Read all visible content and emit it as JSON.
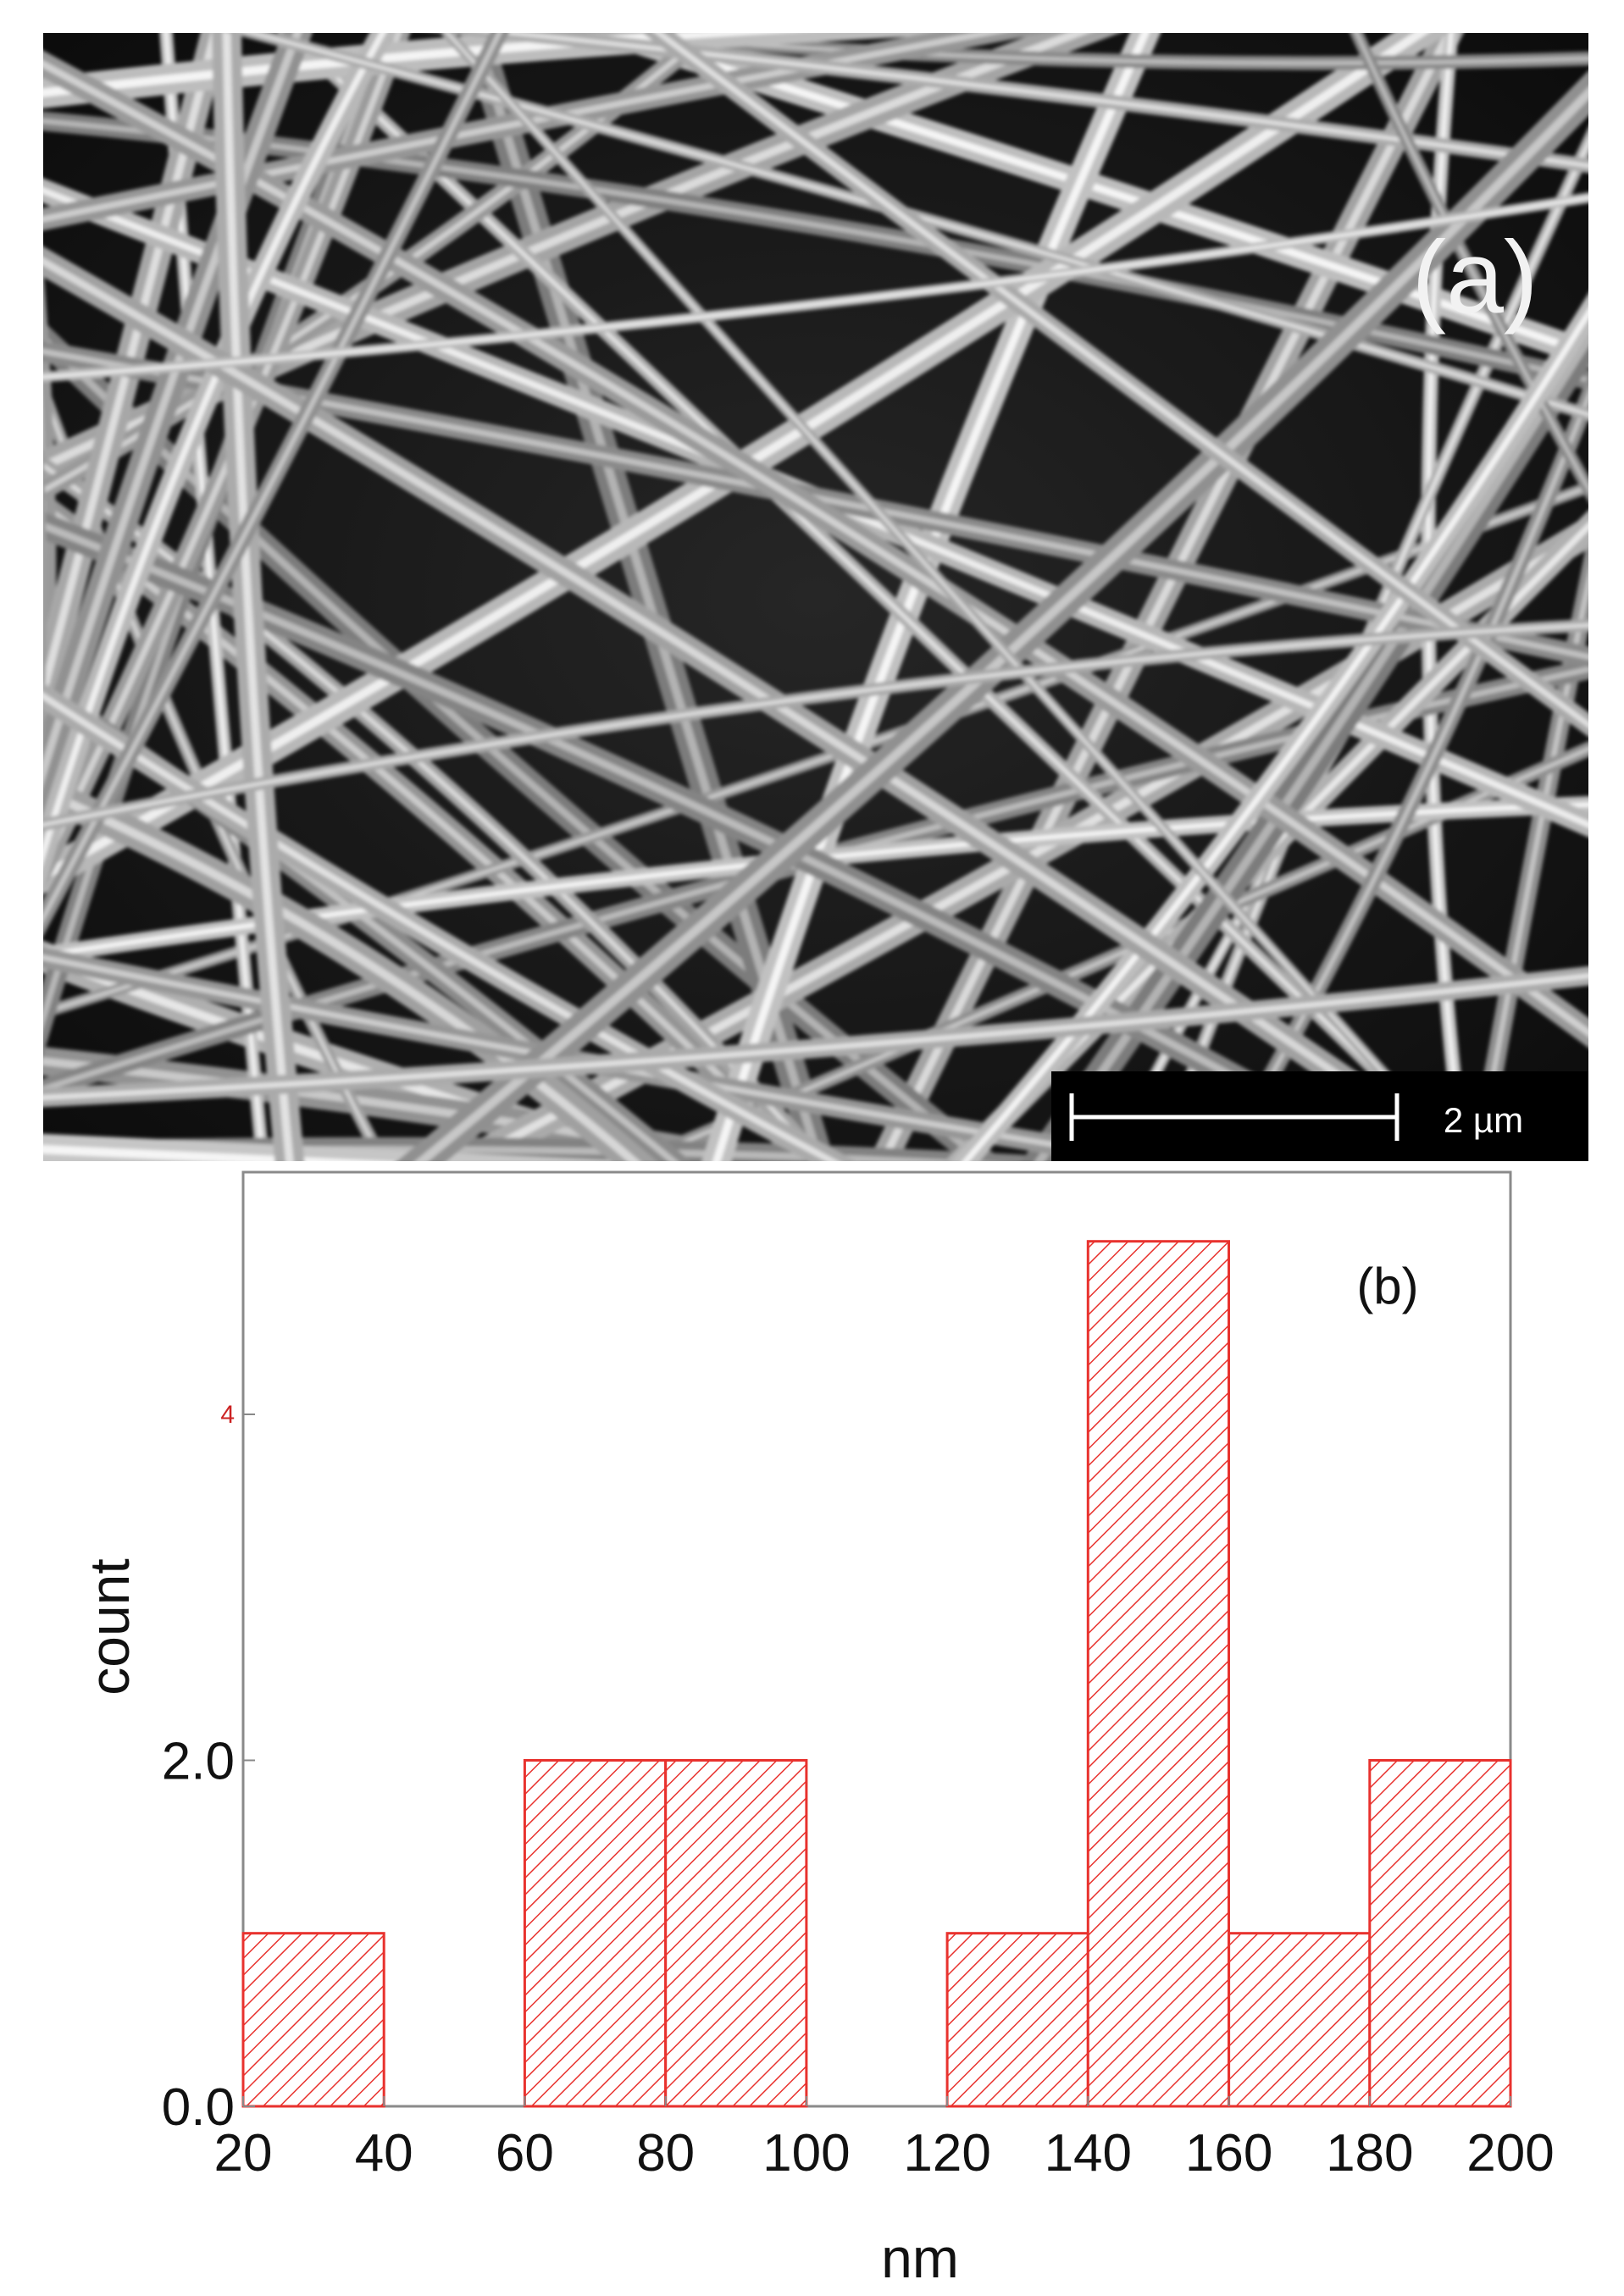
{
  "panel_a": {
    "label": "(a)",
    "scale_bar": "2 µm"
  },
  "chart_data": {
    "type": "bar",
    "panel_label": "(b)",
    "xlabel": "nm",
    "ylabel": "count",
    "bins": [
      {
        "from": 20,
        "to": 40,
        "count": 1
      },
      {
        "from": 40,
        "to": 60,
        "count": 0
      },
      {
        "from": 60,
        "to": 80,
        "count": 2
      },
      {
        "from": 80,
        "to": 100,
        "count": 2
      },
      {
        "from": 100,
        "to": 120,
        "count": 0
      },
      {
        "from": 120,
        "to": 140,
        "count": 1
      },
      {
        "from": 140,
        "to": 160,
        "count": 5
      },
      {
        "from": 160,
        "to": 180,
        "count": 1
      },
      {
        "from": 180,
        "to": 200,
        "count": 2
      }
    ],
    "x_ticks": [
      "20",
      "40",
      "60",
      "80",
      "100",
      "120",
      "140",
      "160",
      "180",
      "200"
    ],
    "y_ticks": [
      {
        "value": 0,
        "label": "0.0"
      },
      {
        "value": 2,
        "label": "2.0"
      },
      {
        "value": 4,
        "label": "4"
      }
    ],
    "xlim": [
      20,
      200
    ],
    "ylim": [
      0,
      5.4
    ],
    "grid": false,
    "colors": {
      "bar": "#e8322e",
      "axis": "#888888",
      "text": "#111111",
      "y4_label": "#cc2222"
    }
  }
}
